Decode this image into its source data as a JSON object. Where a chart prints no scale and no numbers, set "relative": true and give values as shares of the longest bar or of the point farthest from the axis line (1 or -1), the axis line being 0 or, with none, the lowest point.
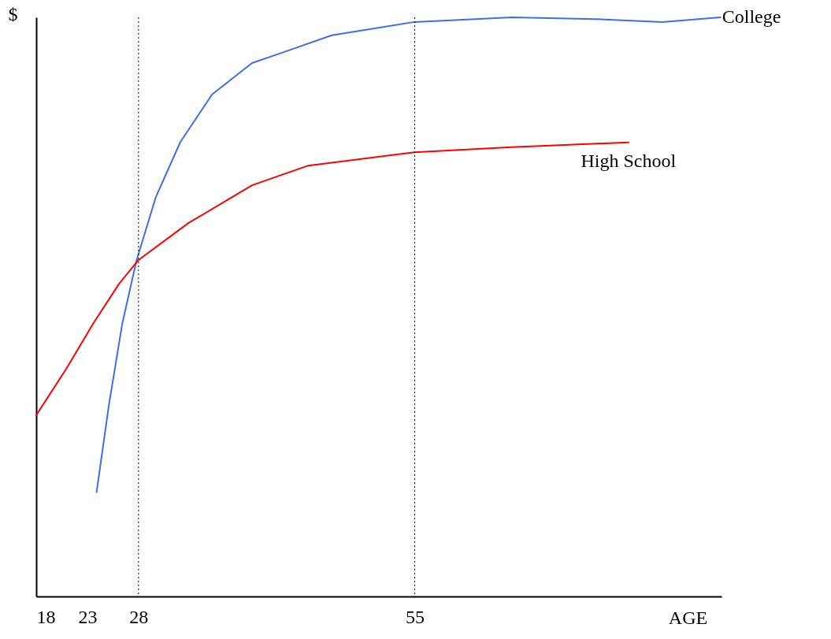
{
  "chart_data": {
    "type": "line",
    "xlabel": "AGE",
    "ylabel": "$",
    "relative": true,
    "marker": "none",
    "xlim": [
      18,
      85
    ],
    "xticks": [
      18,
      23,
      28,
      55
    ],
    "series": [
      {
        "name": "College",
        "color": "#3d6ef0",
        "x": [
          23.9,
          25.1,
          26.4,
          27.8,
          29.7,
          32.1,
          35.2,
          39.1,
          42.2,
          46.9,
          55,
          64.5,
          72.7,
          79.2,
          84.9
        ],
        "values": [
          0.18,
          0.33,
          0.47,
          0.58,
          0.69,
          0.785,
          0.867,
          0.921,
          0.94,
          0.969,
          0.992,
          1.0,
          0.997,
          0.992,
          1.0
        ]
      },
      {
        "name": "High School",
        "color": "#ff0000",
        "x": [
          18,
          21.0,
          23.6,
          26.1,
          28,
          32.9,
          39.1,
          44.6,
          55,
          64.5,
          75.9
        ],
        "values": [
          0.313,
          0.395,
          0.472,
          0.54,
          0.581,
          0.645,
          0.71,
          0.744,
          0.767,
          0.776,
          0.784
        ]
      }
    ],
    "ref_lines": [
      {
        "axis": "x",
        "value": 28,
        "line_style": "dotted",
        "color": "#000000"
      },
      {
        "axis": "x",
        "value": 55,
        "line_style": "dotted",
        "color": "#000000"
      }
    ]
  }
}
